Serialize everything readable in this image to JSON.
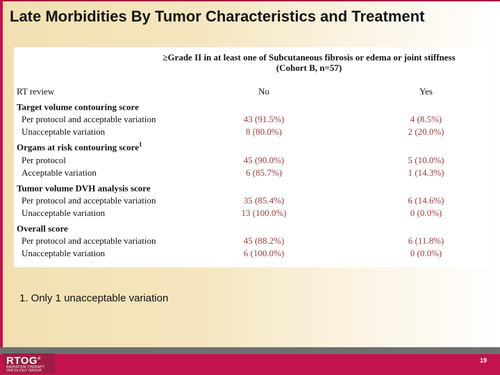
{
  "slide": {
    "title": "Late Morbidities By Tumor Characteristics and Treatment",
    "footnote": "1. Only 1 unacceptable variation",
    "page_number": "19"
  },
  "logo": {
    "name": "RTOG",
    "registered": "®",
    "subtitle_line1": "Radiation Therapy",
    "subtitle_line2": "Oncology Group"
  },
  "table": {
    "header_line1": "≥Grade II in at least one of Subcutaneous fibrosis or edema or joint stiffness",
    "header_line2": "(Cohort B, n=57)",
    "columns": {
      "label": "RT review",
      "no": "No",
      "yes": "Yes"
    },
    "sections": [
      {
        "label": "Target volume contouring score",
        "superscript": "",
        "rows": [
          {
            "label": "Per protocol and acceptable variation",
            "no": "43 (91.5%)",
            "yes": "4 (8.5%)"
          },
          {
            "label": "Unacceptable variation",
            "no": "8 (80.0%)",
            "yes": "2 (20.0%)"
          }
        ]
      },
      {
        "label": "Organs at risk contouring score",
        "superscript": "1",
        "rows": [
          {
            "label": "Per protocol",
            "no": "45 (90.0%)",
            "yes": "5 (10.0%)"
          },
          {
            "label": "Acceptable variation",
            "no": "6 (85.7%)",
            "yes": "1 (14.3%)"
          }
        ]
      },
      {
        "label": "Tumor volume DVH analysis score",
        "superscript": "",
        "rows": [
          {
            "label": "Per protocol and acceptable variation",
            "no": "35 (85.4%)",
            "yes": "6 (14.6%)"
          },
          {
            "label": "Unacceptable variation",
            "no": "13 (100.0%)",
            "yes": "0 (0.0%)"
          }
        ]
      },
      {
        "label": "Overall score",
        "superscript": "",
        "rows": [
          {
            "label": "Per protocol and acceptable variation",
            "no": "45 (88.2%)",
            "yes": "6 (11.8%)"
          },
          {
            "label": "Unacceptable variation",
            "no": "6 (100.0%)",
            "yes": "0 (0.0%)"
          }
        ]
      }
    ]
  },
  "colors": {
    "accent_red": "#c1134e",
    "logo_dark_red": "#9d1c41",
    "data_value_red": "#9e3b3b",
    "bar_gray": "#6f6f6f",
    "background_cream": "#f2e0b2"
  }
}
